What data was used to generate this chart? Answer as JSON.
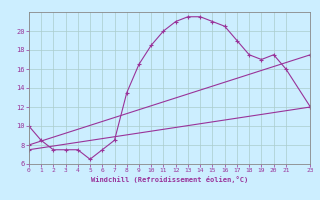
{
  "xlabel": "Windchill (Refroidissement éolien,°C)",
  "bg_color": "#cceeff",
  "grid_color": "#aacccc",
  "line_color": "#993399",
  "xlim": [
    0,
    23
  ],
  "ylim": [
    6,
    22
  ],
  "xticks": [
    0,
    1,
    2,
    3,
    4,
    5,
    6,
    7,
    8,
    9,
    10,
    11,
    12,
    13,
    14,
    15,
    16,
    17,
    18,
    19,
    20,
    21,
    23
  ],
  "yticks": [
    6,
    8,
    10,
    12,
    14,
    16,
    18,
    20
  ],
  "curve1_x": [
    0,
    1,
    2,
    3,
    4,
    5,
    6,
    7,
    8,
    9,
    10,
    11,
    12,
    13,
    14,
    15,
    16,
    17,
    18,
    19,
    20,
    21,
    23
  ],
  "curve1_y": [
    10,
    8.5,
    7.5,
    7.5,
    7.5,
    6.5,
    7.5,
    8.5,
    13.5,
    16.5,
    18.5,
    20,
    21,
    21.5,
    21.5,
    21,
    20.5,
    19,
    17.5,
    17,
    17.5,
    16,
    12
  ],
  "curve2_x": [
    0,
    23
  ],
  "curve2_y": [
    8,
    17.5
  ],
  "curve3_x": [
    0,
    23
  ],
  "curve3_y": [
    7.5,
    12
  ]
}
